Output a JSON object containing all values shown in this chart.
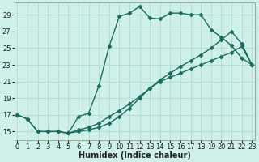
{
  "xlabel": "Humidex (Indice chaleur)",
  "ylabel": "",
  "background_color": "#cef0e8",
  "grid_color": "#a8d8d0",
  "line_color": "#1a6b60",
  "xlim": [
    -0.3,
    23.3
  ],
  "ylim": [
    14.0,
    30.5
  ],
  "yticks": [
    15,
    17,
    19,
    21,
    23,
    25,
    27,
    29
  ],
  "xticks": [
    0,
    1,
    2,
    3,
    4,
    5,
    6,
    7,
    8,
    9,
    10,
    11,
    12,
    13,
    14,
    15,
    16,
    17,
    18,
    19,
    20,
    21,
    22,
    23
  ],
  "line1_x": [
    0,
    1,
    2,
    3,
    4,
    5,
    6,
    7,
    8,
    9,
    10,
    11,
    12,
    13,
    14,
    15,
    16,
    17,
    18,
    19,
    20,
    21,
    22,
    23
  ],
  "line1_y": [
    17,
    16.5,
    15,
    15,
    15,
    14.8,
    16.8,
    17.2,
    20.5,
    25.2,
    28.8,
    29.2,
    30.0,
    28.6,
    28.5,
    29.2,
    29.2,
    29.0,
    29.0,
    27.2,
    26.3,
    25.3,
    23.8,
    23.0
  ],
  "line2_x": [
    5,
    6,
    7,
    8,
    9,
    10,
    11,
    12,
    13,
    14,
    15,
    16,
    17,
    18,
    19,
    20,
    21,
    22,
    23
  ],
  "line2_y": [
    14.8,
    15.0,
    15.2,
    15.5,
    16.0,
    16.8,
    17.8,
    19.0,
    20.2,
    21.2,
    22.0,
    22.8,
    23.5,
    24.2,
    25.0,
    26.0,
    27.0,
    25.5,
    23.0
  ],
  "line3_x": [
    0,
    1,
    2,
    3,
    4,
    5,
    6,
    7,
    8,
    9,
    10,
    11,
    12,
    13,
    14,
    15,
    16,
    17,
    18,
    19,
    20,
    21,
    22,
    23
  ],
  "line3_y": [
    17,
    16.5,
    15.0,
    15.0,
    15.0,
    14.8,
    15.2,
    15.5,
    16.0,
    16.8,
    17.5,
    18.3,
    19.2,
    20.2,
    21.0,
    21.5,
    22.0,
    22.5,
    23.0,
    23.5,
    24.0,
    24.5,
    25.2,
    23.0
  ],
  "marker": "D",
  "markersize": 2.5,
  "linewidth": 1.0,
  "axis_fontsize": 7,
  "tick_fontsize": 6
}
